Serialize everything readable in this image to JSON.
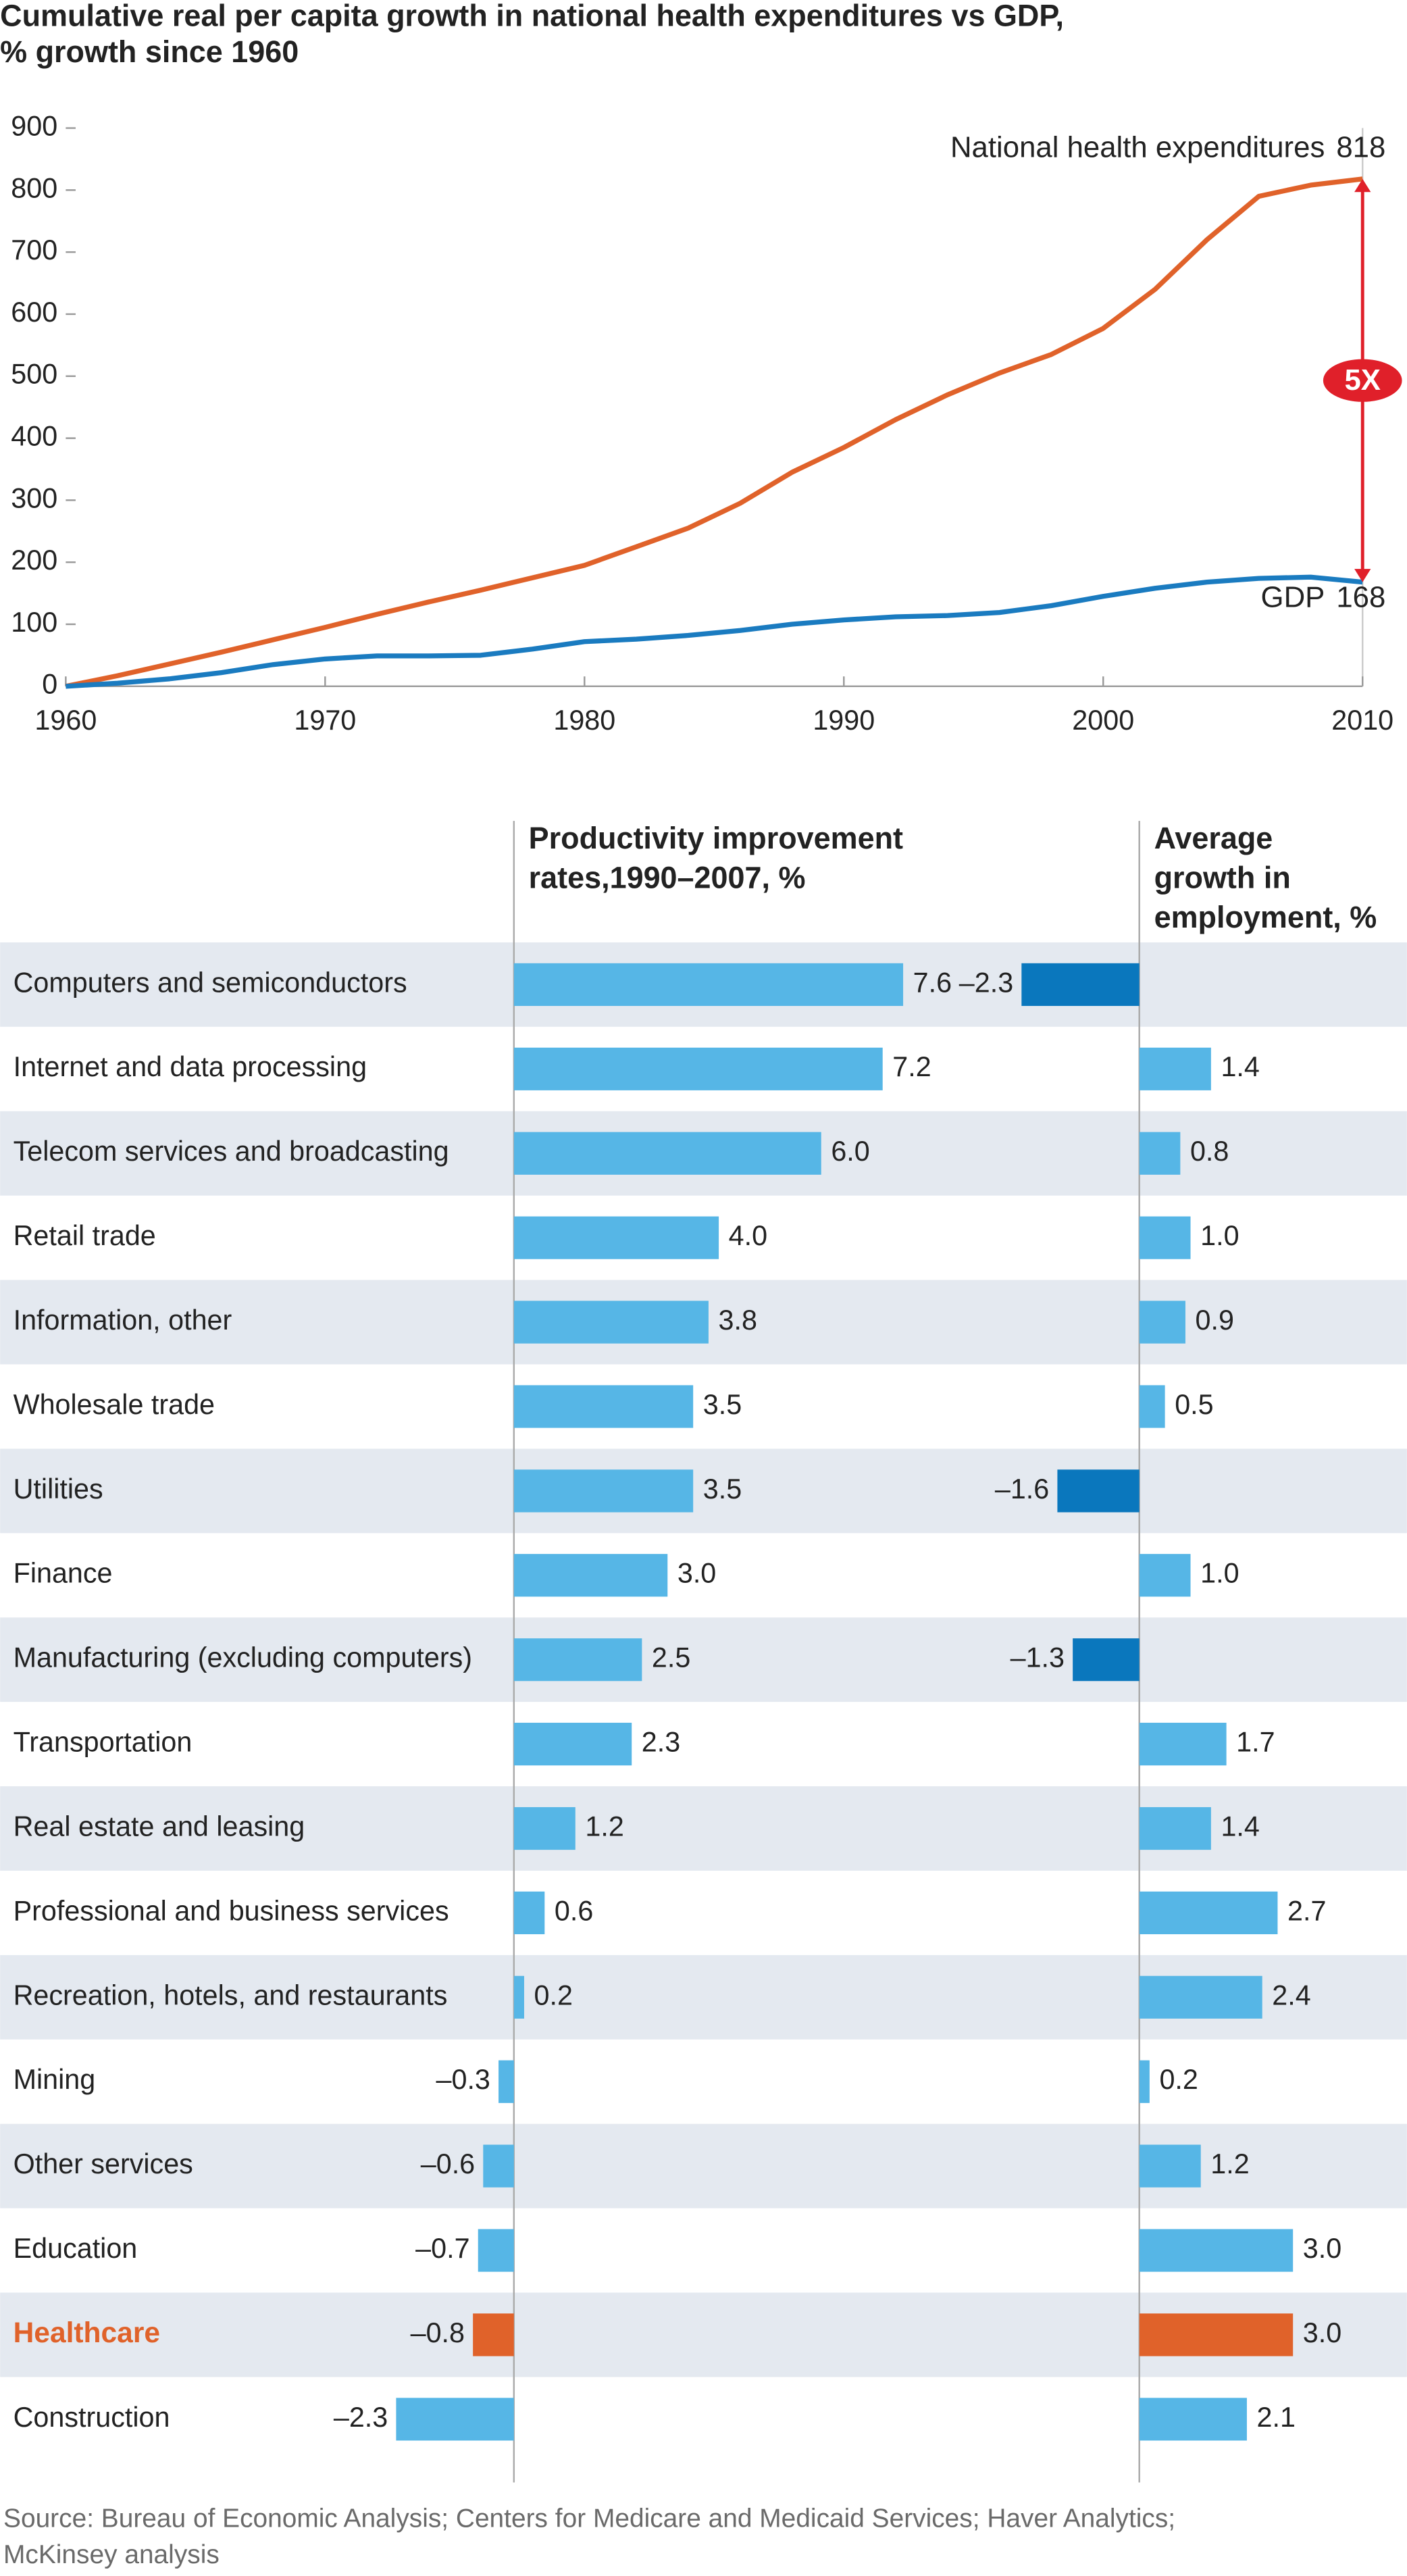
{
  "chart_data": [
    {
      "type": "line",
      "title": [
        "Cumulative real per capita growth in national health expenditures vs GDP,",
        "% growth since 1960"
      ],
      "x": [
        1960,
        1962,
        1964,
        1966,
        1968,
        1970,
        1972,
        1974,
        1976,
        1978,
        1980,
        1982,
        1984,
        1986,
        1988,
        1990,
        1992,
        1994,
        1996,
        1998,
        2000,
        2002,
        2004,
        2006,
        2008,
        2010
      ],
      "xlim": [
        1960,
        2010
      ],
      "ylim": [
        0,
        900
      ],
      "xticks": [
        1960,
        1970,
        1980,
        1990,
        2000,
        2010
      ],
      "yticks": [
        0,
        100,
        200,
        300,
        400,
        500,
        600,
        700,
        800,
        900
      ],
      "series": [
        {
          "name": "National health expenditures",
          "color": "#e0622a",
          "values": [
            0,
            17,
            36,
            55,
            75,
            95,
            116,
            136,
            155,
            175,
            195,
            225,
            255,
            295,
            345,
            385,
            430,
            470,
            505,
            535,
            577,
            640,
            720,
            790,
            808,
            818
          ]
        },
        {
          "name": "GDP",
          "color": "#1a7bc0",
          "values": [
            0,
            5,
            12,
            22,
            35,
            44,
            49,
            49,
            50,
            60,
            72,
            76,
            82,
            90,
            100,
            107,
            112,
            114,
            119,
            130,
            145,
            158,
            168,
            174,
            176,
            168
          ]
        }
      ],
      "annotation": "5X",
      "annotation_color": "#e0202a"
    },
    {
      "type": "bar",
      "categories": [
        "Computers and semiconductors",
        "Internet and data processing",
        "Telecom services and broadcasting",
        "Retail trade",
        "Information, other",
        "Wholesale trade",
        "Utilities",
        "Finance",
        "Manufacturing (excluding computers)",
        "Transportation",
        "Real estate and leasing",
        "Professional and business services",
        "Recreation, hotels, and restaurants",
        "Mining",
        "Other services",
        "Education",
        "Healthcare",
        "Construction"
      ],
      "highlight_index": 16,
      "highlight_color": "#e0622a",
      "series": [
        {
          "name": [
            "Productivity improvement",
            "rates,1990–2007, %"
          ],
          "color": "#56b6e6",
          "values": [
            7.6,
            7.2,
            6.0,
            4.0,
            3.8,
            3.5,
            3.5,
            3.0,
            2.5,
            2.3,
            1.2,
            0.6,
            0.2,
            -0.3,
            -0.6,
            -0.7,
            -0.8,
            -2.3
          ],
          "value_labels": [
            "7.6",
            "7.2",
            "6.0",
            "4.0",
            "3.8",
            "3.5",
            "3.5",
            "3.0",
            "2.5",
            "2.3",
            "1.2",
            "0.6",
            "0.2",
            "–0.3",
            "–0.6",
            "–0.7",
            "–0.8",
            "–2.3"
          ]
        },
        {
          "name": [
            "Average",
            "growth in",
            "employment, %"
          ],
          "color": "#56b6e6",
          "negative_color": "#0a77bd",
          "values": [
            -2.3,
            1.4,
            0.8,
            1.0,
            0.9,
            0.5,
            -1.6,
            1.0,
            -1.3,
            1.7,
            1.4,
            2.7,
            2.4,
            0.2,
            1.2,
            3.0,
            3.0,
            2.1
          ],
          "value_labels": [
            "–2.3",
            "1.4",
            "0.8",
            "1.0",
            "0.9",
            "0.5",
            "–1.6",
            "1.0",
            "–1.3",
            "1.7",
            "1.4",
            "2.7",
            "2.4",
            "0.2",
            "1.2",
            "3.0",
            "3.0",
            "2.1"
          ]
        }
      ]
    }
  ],
  "source": [
    "Source: Bureau of Economic Analysis; Centers for Medicare and Medicaid Services; Haver Analytics;",
    "McKinsey analysis"
  ]
}
